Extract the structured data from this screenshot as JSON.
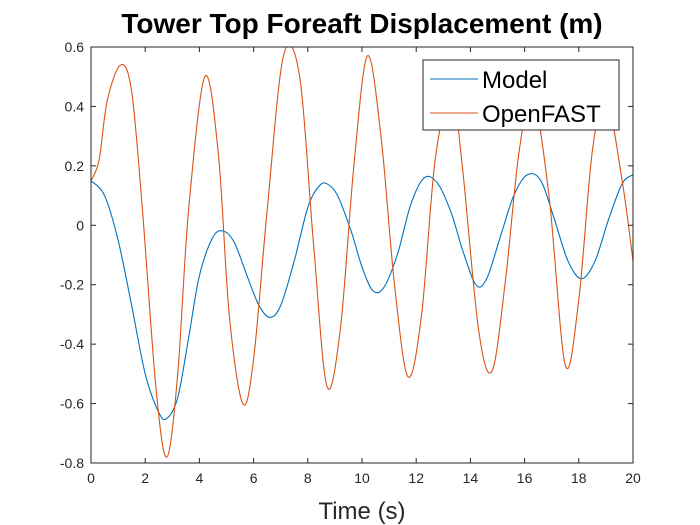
{
  "chart_data": {
    "type": "line",
    "title": "Tower Top Foreaft Displacement (m)",
    "xlabel": "Time (s)",
    "ylabel": "",
    "xlim": [
      0,
      20
    ],
    "ylim": [
      -0.8,
      0.6
    ],
    "xticks": [
      0,
      2,
      4,
      6,
      8,
      10,
      12,
      14,
      16,
      18,
      20
    ],
    "yticks": [
      -0.8,
      -0.6,
      -0.4,
      -0.2,
      0,
      0.2,
      0.4,
      0.6
    ],
    "xtick_labels": [
      "0",
      "2",
      "4",
      "6",
      "8",
      "10",
      "12",
      "14",
      "16",
      "18",
      "20"
    ],
    "ytick_labels": [
      "-0.8",
      "-0.6",
      "-0.4",
      "-0.2",
      "0",
      "0.2",
      "0.4",
      "0.6"
    ],
    "grid": false,
    "legend_position": "top-right",
    "series": [
      {
        "name": "Model",
        "color": "#0072BD",
        "x": [
          0,
          0.5,
          1,
          1.5,
          2,
          2.5,
          2.8,
          3.2,
          3.6,
          4.0,
          4.5,
          4.9,
          5.3,
          5.8,
          6.2,
          6.6,
          7.0,
          7.5,
          8.0,
          8.4,
          8.7,
          9.1,
          9.6,
          10.0,
          10.4,
          10.8,
          11.3,
          11.8,
          12.3,
          12.8,
          13.3,
          13.7,
          14.2,
          14.6,
          15.1,
          15.6,
          16.1,
          16.6,
          17.1,
          17.6,
          18.1,
          18.6,
          19.1,
          19.6,
          20.0
        ],
        "y": [
          0.15,
          0.1,
          -0.05,
          -0.27,
          -0.5,
          -0.63,
          -0.65,
          -0.58,
          -0.38,
          -0.17,
          -0.04,
          -0.02,
          -0.06,
          -0.18,
          -0.27,
          -0.31,
          -0.27,
          -0.12,
          0.06,
          0.13,
          0.14,
          0.1,
          -0.02,
          -0.14,
          -0.22,
          -0.21,
          -0.1,
          0.07,
          0.16,
          0.14,
          0.04,
          -0.08,
          -0.2,
          -0.18,
          -0.04,
          0.1,
          0.17,
          0.15,
          0.02,
          -0.12,
          -0.18,
          -0.12,
          0.02,
          0.14,
          0.17
        ]
      },
      {
        "name": "OpenFAST",
        "color": "#D95319",
        "x": [
          0,
          0.3,
          0.6,
          1.1,
          1.5,
          1.9,
          2.4,
          2.8,
          3.2,
          3.6,
          4.2,
          4.7,
          5.1,
          5.6,
          6.0,
          6.5,
          7.1,
          7.7,
          8.2,
          8.7,
          9.2,
          9.7,
          10.2,
          10.7,
          11.2,
          11.7,
          12.2,
          12.7,
          13.3,
          13.7,
          14.3,
          14.8,
          15.3,
          15.8,
          16.3,
          16.9,
          17.5,
          18.0,
          18.5,
          19.0,
          19.6,
          20.0
        ],
        "y": [
          0.15,
          0.22,
          0.42,
          0.54,
          0.45,
          0.05,
          -0.55,
          -0.78,
          -0.5,
          0.05,
          0.5,
          0.24,
          -0.3,
          -0.6,
          -0.45,
          0.05,
          0.57,
          0.5,
          -0.05,
          -0.54,
          -0.35,
          0.2,
          0.57,
          0.3,
          -0.2,
          -0.51,
          -0.3,
          0.22,
          0.45,
          0.2,
          -0.35,
          -0.49,
          -0.18,
          0.25,
          0.43,
          0.1,
          -0.47,
          -0.25,
          0.25,
          0.43,
          0.15,
          -0.12
        ]
      }
    ]
  }
}
